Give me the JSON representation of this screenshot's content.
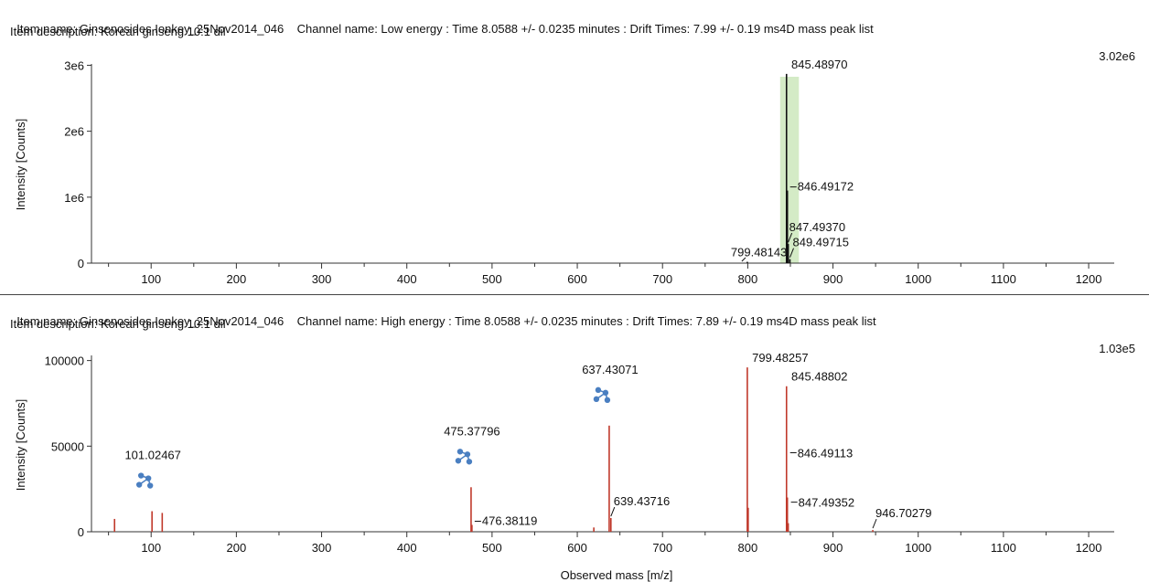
{
  "header_top": {
    "item_name": "Item name: Ginsenosides Ionkey_25Nov2014_046",
    "channel": "Channel name: Low energy : Time 8.0588 +/- 0.0235 minutes : Drift Times: 7.99 +/- 0.19 ms4D mass peak list",
    "description": "Item description: Korean ginseng 10:1 dil"
  },
  "header_bottom": {
    "item_name": "Item name: Ginsenosides Ionkey_25Nov2014_046",
    "channel": "Channel name: High energy : Time 8.0588 +/- 0.0235 minutes : Drift Times: 7.89 +/- 0.19 ms4D mass peak list",
    "description": "Item description: Korean ginseng 10:1 dil"
  },
  "chart_data": [
    {
      "type": "bar",
      "title": "",
      "xlabel": "",
      "ylabel": "Intensity [Counts]",
      "max_label": "3.02e6",
      "xlim": [
        30,
        1230
      ],
      "ylim": [
        0,
        3020000
      ],
      "xticks": [
        100,
        200,
        300,
        400,
        500,
        600,
        700,
        800,
        900,
        1000,
        1100,
        1200
      ],
      "yticks": [
        {
          "value": 0,
          "label": "0"
        },
        {
          "value": 1000000,
          "label": "1e6"
        },
        {
          "value": 2000000,
          "label": "2e6"
        },
        {
          "value": 3000000,
          "label": "3e6"
        }
      ],
      "color": "#111111",
      "highlight": {
        "from": 838,
        "to": 860,
        "color": "#d4ebc6"
      },
      "peaks": [
        {
          "mz": 799.48143,
          "intensity": 20000
        },
        {
          "mz": 845.4897,
          "intensity": 2870000
        },
        {
          "mz": 846.49172,
          "intensity": 1100000
        },
        {
          "mz": 847.4937,
          "intensity": 290000
        },
        {
          "mz": 849.49715,
          "intensity": 60000
        }
      ],
      "labels": [
        {
          "text": "845.48970",
          "mz": 845.4897,
          "intensity": 2870000,
          "style": "top"
        },
        {
          "text": "846.49172",
          "mz": 846.49172,
          "intensity": 1100000,
          "style": "dash"
        },
        {
          "text": "847.49370",
          "mz": 847.4937,
          "intensity": 290000,
          "style": "slash-high"
        },
        {
          "text": "849.49715",
          "mz": 849.49715,
          "intensity": 60000,
          "style": "slash"
        },
        {
          "text": "799.48143",
          "mz": 799.48143,
          "intensity": 20000,
          "style": "left"
        }
      ],
      "markers": []
    },
    {
      "type": "bar",
      "title": "",
      "xlabel": "Observed mass [m/z]",
      "ylabel": "Intensity [Counts]",
      "max_label": "1.03e5",
      "xlim": [
        30,
        1230
      ],
      "ylim": [
        0,
        103000
      ],
      "xticks": [
        100,
        200,
        300,
        400,
        500,
        600,
        700,
        800,
        900,
        1000,
        1100,
        1200
      ],
      "yticks": [
        {
          "value": 0,
          "label": "0"
        },
        {
          "value": 50000,
          "label": "50000"
        },
        {
          "value": 100000,
          "label": "100000"
        }
      ],
      "color": "#c0392b",
      "highlight": null,
      "peaks": [
        {
          "mz": 57.07,
          "intensity": 7500
        },
        {
          "mz": 101.02467,
          "intensity": 12000
        },
        {
          "mz": 113.0,
          "intensity": 11000
        },
        {
          "mz": 475.37796,
          "intensity": 26000
        },
        {
          "mz": 476.38119,
          "intensity": 4000
        },
        {
          "mz": 619.4,
          "intensity": 2500
        },
        {
          "mz": 637.43071,
          "intensity": 62000
        },
        {
          "mz": 639.43716,
          "intensity": 8000
        },
        {
          "mz": 799.48257,
          "intensity": 96000
        },
        {
          "mz": 800.49,
          "intensity": 14000
        },
        {
          "mz": 845.48802,
          "intensity": 85000
        },
        {
          "mz": 846.49113,
          "intensity": 20000
        },
        {
          "mz": 847.49352,
          "intensity": 5000
        },
        {
          "mz": 946.70279,
          "intensity": 1000
        }
      ],
      "labels": [
        {
          "text": "101.02467",
          "mz": 101.02467,
          "intensity": 12000,
          "style": "marker"
        },
        {
          "text": "475.37796",
          "mz": 475.37796,
          "intensity": 26000,
          "style": "marker"
        },
        {
          "text": "476.38119",
          "mz": 476.38119,
          "intensity": 4000,
          "style": "dash"
        },
        {
          "text": "637.43071",
          "mz": 637.43071,
          "intensity": 62000,
          "style": "marker"
        },
        {
          "text": "639.43716",
          "mz": 639.43716,
          "intensity": 8000,
          "style": "slash"
        },
        {
          "text": "799.48257",
          "mz": 799.48257,
          "intensity": 96000,
          "style": "top"
        },
        {
          "text": "845.48802",
          "mz": 845.48802,
          "intensity": 85000,
          "style": "top"
        },
        {
          "text": "846.49113",
          "mz": 846.49113,
          "intensity": 20000,
          "style": "dash-high"
        },
        {
          "text": "847.49352",
          "mz": 847.49352,
          "intensity": 5000,
          "style": "dash-mid"
        },
        {
          "text": "946.70279",
          "mz": 946.70279,
          "intensity": 1000,
          "style": "slash"
        }
      ],
      "markers": [
        {
          "mz": 101.02467,
          "icon": "structure-icon"
        },
        {
          "mz": 475.37796,
          "icon": "structure-icon"
        },
        {
          "mz": 637.43071,
          "icon": "structure-icon"
        }
      ]
    }
  ]
}
